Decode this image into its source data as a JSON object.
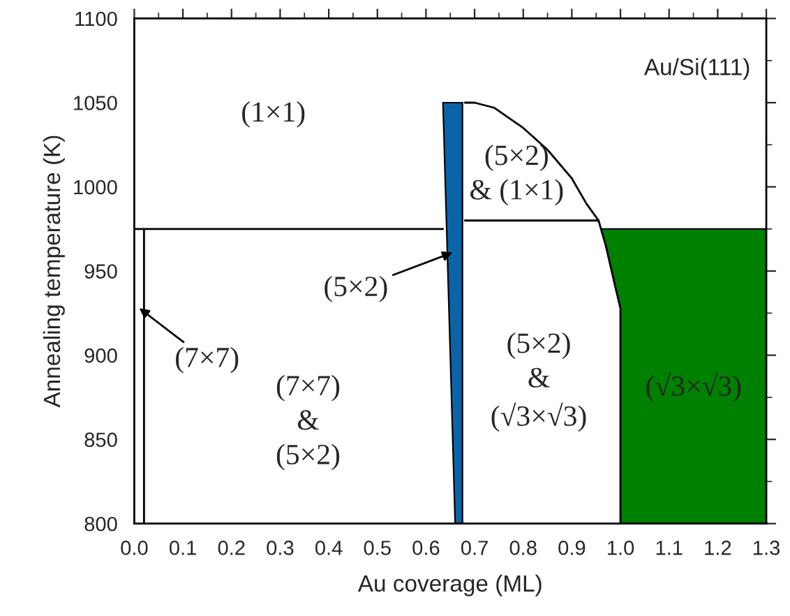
{
  "chart_data": {
    "type": "line",
    "xlabel": "Au coverage (ML)",
    "ylabel": "Annealing temperature (K)",
    "xlim": [
      0,
      1.3
    ],
    "xticks": [
      {
        "value": 0,
        "label": "0.0"
      },
      0.1,
      0.2,
      0.3,
      0.4,
      0.5,
      0.6,
      0.7,
      0.8,
      0.9,
      {
        "value": 1,
        "label": "1.0"
      },
      1.1,
      1.2,
      1.3
    ],
    "ylim": [
      800,
      1100
    ],
    "yticks": [
      800,
      850,
      900,
      950,
      1000,
      1050,
      1100
    ],
    "grid": false,
    "legend": false,
    "marker": "none",
    "series": [
      {
        "color": "#000000",
        "x": [
          0,
          0.635
        ],
        "values": [
          975,
          975
        ]
      },
      {
        "color": "#000000",
        "x": [
          0.02,
          0.02
        ],
        "values": [
          800,
          975
        ]
      },
      {
        "color": "#000000",
        "x": [
          0.68,
          0.955
        ],
        "values": [
          980,
          980
        ]
      },
      {
        "color": "#000000",
        "x": [
          0.68,
          0.7,
          0.74,
          0.8,
          0.85,
          0.9,
          0.93,
          0.955,
          0.97,
          0.99,
          1.0,
          1.0
        ],
        "values": [
          1050,
          1050,
          1047,
          1035,
          1022,
          1005,
          990,
          980,
          965,
          940,
          928,
          800
        ]
      },
      {
        "type": "area",
        "color": "#0b64a8",
        "x": [
          0.635,
          0.675,
          0.675,
          0.66
        ],
        "values": [
          1050,
          1050,
          800,
          800
        ]
      },
      {
        "type": "area",
        "color": "#008000",
        "x": [
          0.96,
          1.3,
          1.3,
          1.0,
          1.0,
          0.99,
          0.97
        ],
        "values": [
          975,
          975,
          800,
          800,
          928,
          940,
          965
        ]
      }
    ],
    "annotations": [
      "(1×1)",
      "(5×2)\n& (1×1)",
      {
        "text": "(5×2)",
        "x": 0.655,
        "y": 961
      },
      {
        "text": "(7×7)",
        "x": 0.01,
        "y": 928
      },
      "(7×7)\n&\n(5×2)",
      "(5×2)\n&\n(√3×√3)",
      "(√3×√3)",
      "Au/Si(111)"
    ]
  }
}
